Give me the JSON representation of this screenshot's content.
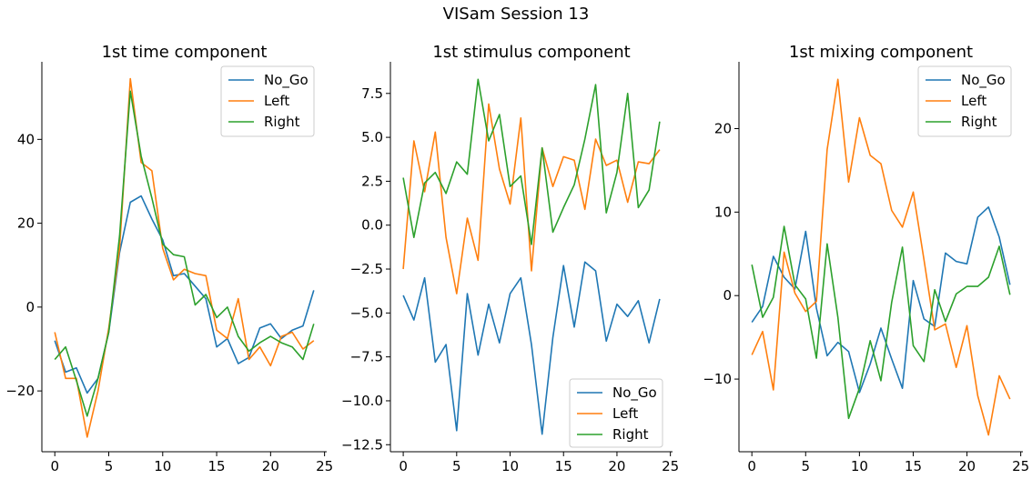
{
  "figure": {
    "title": "VISam Session 13"
  },
  "chart_data": [
    {
      "type": "line",
      "title": "1st time component",
      "xlabel": "",
      "ylabel": "",
      "xlim": [
        -1.2,
        25.2
      ],
      "ylim": [
        -34.5,
        58.5
      ],
      "xticks": [
        0,
        5,
        10,
        15,
        20,
        25
      ],
      "yticks": [
        -20,
        0,
        20,
        40
      ],
      "legend_position": "upper-right",
      "x": [
        0,
        1,
        2,
        3,
        4,
        5,
        6,
        7,
        8,
        9,
        10,
        11,
        12,
        13,
        14,
        15,
        16,
        17,
        18,
        19,
        20,
        21,
        22,
        23,
        24
      ],
      "series": [
        {
          "name": "No_Go",
          "color": "#1f77b4",
          "values": [
            -8,
            -15.5,
            -14.5,
            -20.5,
            -17,
            -6,
            13,
            25,
            26.5,
            21,
            16,
            7.5,
            8,
            5,
            2,
            -9.5,
            -7.5,
            -13.5,
            -12,
            -5,
            -4,
            -7.5,
            -5.5,
            -4.5,
            4
          ]
        },
        {
          "name": "Left",
          "color": "#ff7f0e",
          "values": [
            -6,
            -17,
            -17,
            -31,
            -20,
            -5,
            14,
            54.5,
            34.5,
            32.5,
            14,
            6.5,
            9,
            8,
            7.5,
            -5.5,
            -7.5,
            2,
            -12.5,
            -9.5,
            -14,
            -7,
            -6,
            -10,
            -8
          ]
        },
        {
          "name": "Right",
          "color": "#2ca02c",
          "values": [
            -12.5,
            -9.5,
            -17.5,
            -26,
            -17,
            -6,
            17,
            51.5,
            36,
            26,
            15,
            12.5,
            12,
            0.5,
            3,
            -2.5,
            0,
            -7,
            -10.5,
            -8.5,
            -7,
            -8.5,
            -9.5,
            -12.5,
            -4
          ]
        }
      ]
    },
    {
      "type": "line",
      "title": "1st stimulus component",
      "xlabel": "",
      "ylabel": "",
      "xlim": [
        -1.2,
        25.2
      ],
      "ylim": [
        -12.9,
        9.3
      ],
      "xticks": [
        0,
        5,
        10,
        15,
        20,
        25
      ],
      "yticks": [
        -12.5,
        -10.0,
        -7.5,
        -5.0,
        -2.5,
        0.0,
        2.5,
        5.0,
        7.5
      ],
      "legend_position": "lower-right",
      "x": [
        0,
        1,
        2,
        3,
        4,
        5,
        6,
        7,
        8,
        9,
        10,
        11,
        12,
        13,
        14,
        15,
        16,
        17,
        18,
        19,
        20,
        21,
        22,
        23,
        24
      ],
      "series": [
        {
          "name": "No_Go",
          "color": "#1f77b4",
          "values": [
            -4,
            -5.4,
            -3,
            -7.8,
            -6.8,
            -11.7,
            -3.9,
            -7.4,
            -4.5,
            -6.7,
            -3.9,
            -3,
            -6.8,
            -11.9,
            -6.4,
            -2.3,
            -5.8,
            -2.1,
            -2.6,
            -6.6,
            -4.5,
            -5.2,
            -4.3,
            -6.7,
            -4.2
          ]
        },
        {
          "name": "Left",
          "color": "#ff7f0e",
          "values": [
            -2.5,
            4.8,
            1.9,
            5.3,
            -0.7,
            -3.9,
            0.4,
            -2,
            6.9,
            3.2,
            1.2,
            6.1,
            -2.6,
            4.4,
            2.2,
            3.9,
            3.7,
            0.9,
            4.9,
            3.4,
            3.7,
            1.3,
            3.6,
            3.5,
            4.3
          ]
        },
        {
          "name": "Right",
          "color": "#2ca02c",
          "values": [
            2.7,
            -0.7,
            2.4,
            3,
            1.8,
            3.6,
            2.9,
            8.3,
            4.8,
            6.3,
            2.2,
            2.8,
            -1.1,
            4.4,
            -0.4,
            1,
            2.3,
            4.9,
            8,
            0.7,
            3,
            7.5,
            1,
            2,
            5.9
          ]
        }
      ]
    },
    {
      "type": "line",
      "title": "1st mixing component",
      "xlabel": "",
      "ylabel": "",
      "xlim": [
        -1.2,
        25.2
      ],
      "ylim": [
        -18.7,
        28
      ],
      "xticks": [
        0,
        5,
        10,
        15,
        20,
        25
      ],
      "yticks": [
        -10,
        0,
        10,
        20
      ],
      "legend_position": "upper-right",
      "x": [
        0,
        1,
        2,
        3,
        4,
        5,
        6,
        7,
        8,
        9,
        10,
        11,
        12,
        13,
        14,
        15,
        16,
        17,
        18,
        19,
        20,
        21,
        22,
        23,
        24
      ],
      "series": [
        {
          "name": "No_Go",
          "color": "#1f77b4",
          "values": [
            -3.2,
            -1.3,
            4.7,
            2.2,
            0.8,
            7.7,
            -1.5,
            -7.2,
            -5.6,
            -6.7,
            -11.6,
            -8.2,
            -3.9,
            -7.6,
            -11.1,
            1.8,
            -2.8,
            -3.7,
            5.1,
            4.1,
            3.8,
            9.4,
            10.6,
            7,
            1.3
          ]
        },
        {
          "name": "Left",
          "color": "#ff7f0e",
          "values": [
            -7.1,
            -4.3,
            -11.3,
            5.2,
            0.3,
            -1.9,
            -0.7,
            17.5,
            25.9,
            13.6,
            21.3,
            16.8,
            15.8,
            10.2,
            8.2,
            12.4,
            4.3,
            -4.1,
            -3.4,
            -8.6,
            -3.6,
            -12,
            -16.7,
            -9.6,
            -12.4
          ]
        },
        {
          "name": "Right",
          "color": "#2ca02c",
          "values": [
            3.7,
            -2.6,
            -0.2,
            8.3,
            1.3,
            -0.4,
            -7.5,
            6.2,
            -2.6,
            -14.7,
            -11.1,
            -5.4,
            -10.2,
            -0.8,
            5.8,
            -6,
            -7.9,
            0.7,
            -3.1,
            0.2,
            1.1,
            1.1,
            2.2,
            5.9,
            0.1
          ]
        }
      ]
    }
  ]
}
